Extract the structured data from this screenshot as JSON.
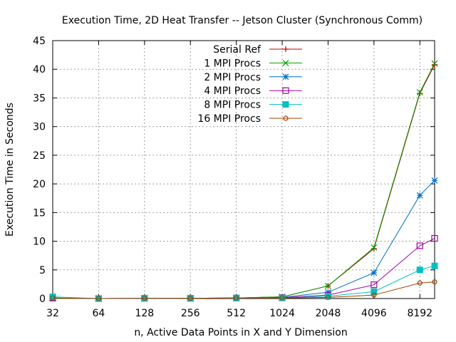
{
  "chart_data": {
    "type": "line",
    "title": "Execution Time, 2D Heat Transfer -- Jetson Cluster (Synchronous Comm)",
    "xlabel": "n, Active Data Points in X and Y Dimension",
    "ylabel": "Execution Time in Seconds",
    "x_scale": "log2",
    "x_ticks": [
      32,
      64,
      128,
      256,
      512,
      1024,
      2048,
      4096,
      8192
    ],
    "x_tick_labels": [
      "32",
      "64",
      "128",
      "256",
      "512",
      "1024",
      "2048",
      "4096",
      "8192"
    ],
    "xlim": [
      32,
      10240
    ],
    "y_ticks": [
      0,
      5,
      10,
      15,
      20,
      25,
      30,
      35,
      40,
      45
    ],
    "ylim": [
      0,
      45
    ],
    "grid": true,
    "legend_position": "top-center",
    "series": [
      {
        "name": "Serial Ref",
        "color": "#c00000",
        "marker": "plus",
        "x": [
          32,
          64,
          128,
          256,
          512,
          1024,
          2048,
          4096,
          8192,
          10240
        ],
        "values": [
          0.0,
          0.0,
          0.0,
          0.05,
          0.1,
          0.3,
          2.2,
          8.7,
          35.8,
          40.8
        ]
      },
      {
        "name": "1 MPI Procs",
        "color": "#00a000",
        "marker": "x",
        "x": [
          32,
          64,
          128,
          256,
          512,
          1024,
          2048,
          4096,
          8192,
          10240
        ],
        "values": [
          0.0,
          0.0,
          0.0,
          0.05,
          0.1,
          0.3,
          2.2,
          8.9,
          36.0,
          41.0
        ]
      },
      {
        "name": "2 MPI Procs",
        "color": "#0070c0",
        "marker": "star",
        "x": [
          32,
          64,
          128,
          256,
          512,
          1024,
          2048,
          4096,
          8192,
          10240
        ],
        "values": [
          0.1,
          0.0,
          0.05,
          0.05,
          0.1,
          0.2,
          1.1,
          4.5,
          18.0,
          20.6
        ]
      },
      {
        "name": "4 MPI Procs",
        "color": "#a000a0",
        "marker": "square",
        "x": [
          32,
          64,
          128,
          256,
          512,
          1024,
          2048,
          4096,
          8192,
          10240
        ],
        "values": [
          0.1,
          0.0,
          0.05,
          0.05,
          0.1,
          0.15,
          0.6,
          2.4,
          9.2,
          10.5
        ]
      },
      {
        "name": "8 MPI Procs",
        "color": "#00c0c0",
        "marker": "filled-square",
        "x": [
          32,
          64,
          128,
          256,
          512,
          1024,
          2048,
          4096,
          8192,
          10240
        ],
        "values": [
          0.3,
          0.0,
          0.05,
          0.05,
          0.1,
          0.1,
          0.4,
          1.2,
          5.0,
          5.7
        ]
      },
      {
        "name": "16 MPI Procs",
        "color": "#a04000",
        "marker": "circle",
        "x": [
          32,
          64,
          128,
          256,
          512,
          1024,
          2048,
          4096,
          8192,
          10240
        ],
        "values": [
          0.1,
          0.0,
          0.05,
          0.05,
          0.1,
          0.1,
          0.2,
          0.6,
          2.7,
          2.9
        ]
      }
    ]
  }
}
